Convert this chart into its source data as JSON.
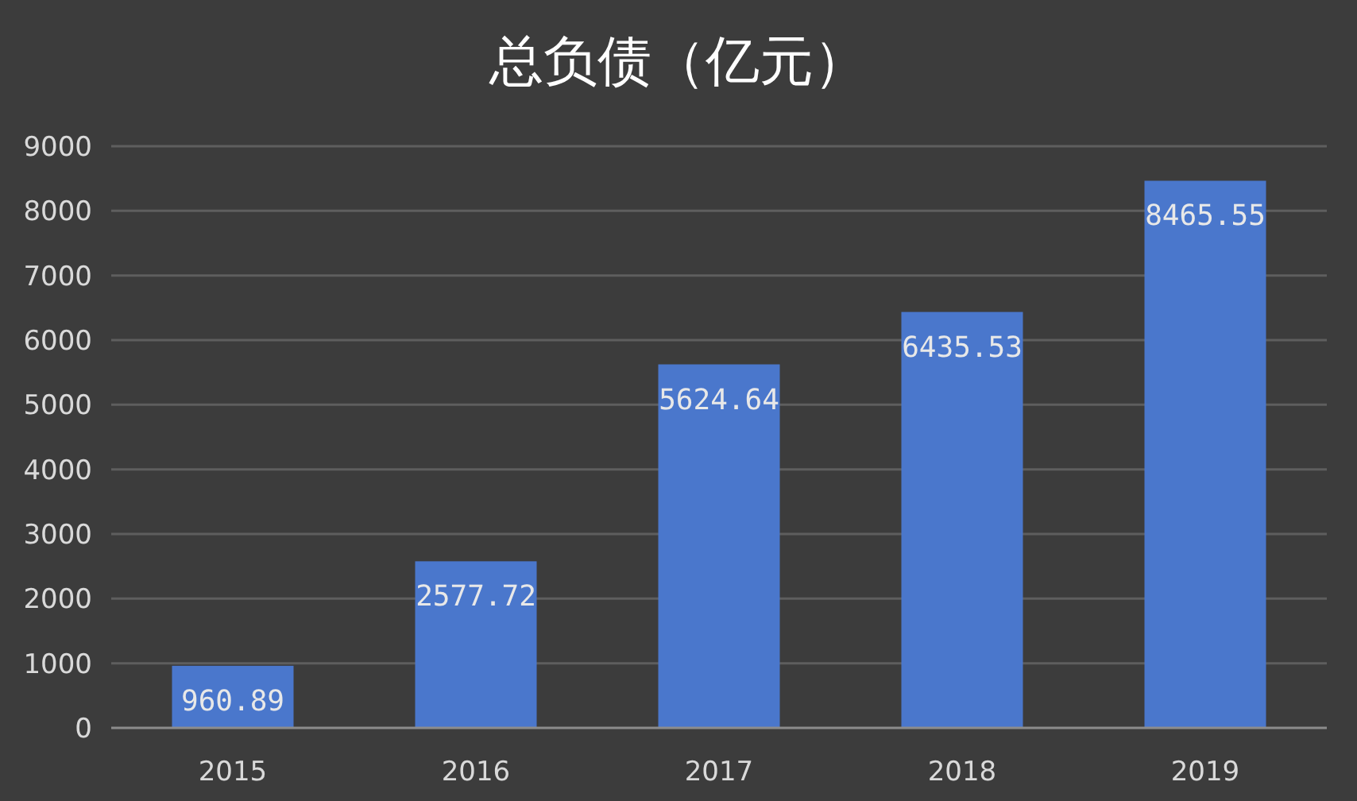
{
  "chart_data": {
    "type": "bar",
    "title": "总负债（亿元）",
    "categories": [
      "2015",
      "2016",
      "2017",
      "2018",
      "2019"
    ],
    "values": [
      960.89,
      2577.72,
      5624.64,
      6435.53,
      8465.55
    ],
    "color": "#4a77cc",
    "ylim": [
      0,
      9000
    ],
    "yticks": [
      0,
      1000,
      2000,
      3000,
      4000,
      5000,
      6000,
      7000,
      8000,
      9000
    ],
    "grid": "y",
    "data_labels": true
  }
}
